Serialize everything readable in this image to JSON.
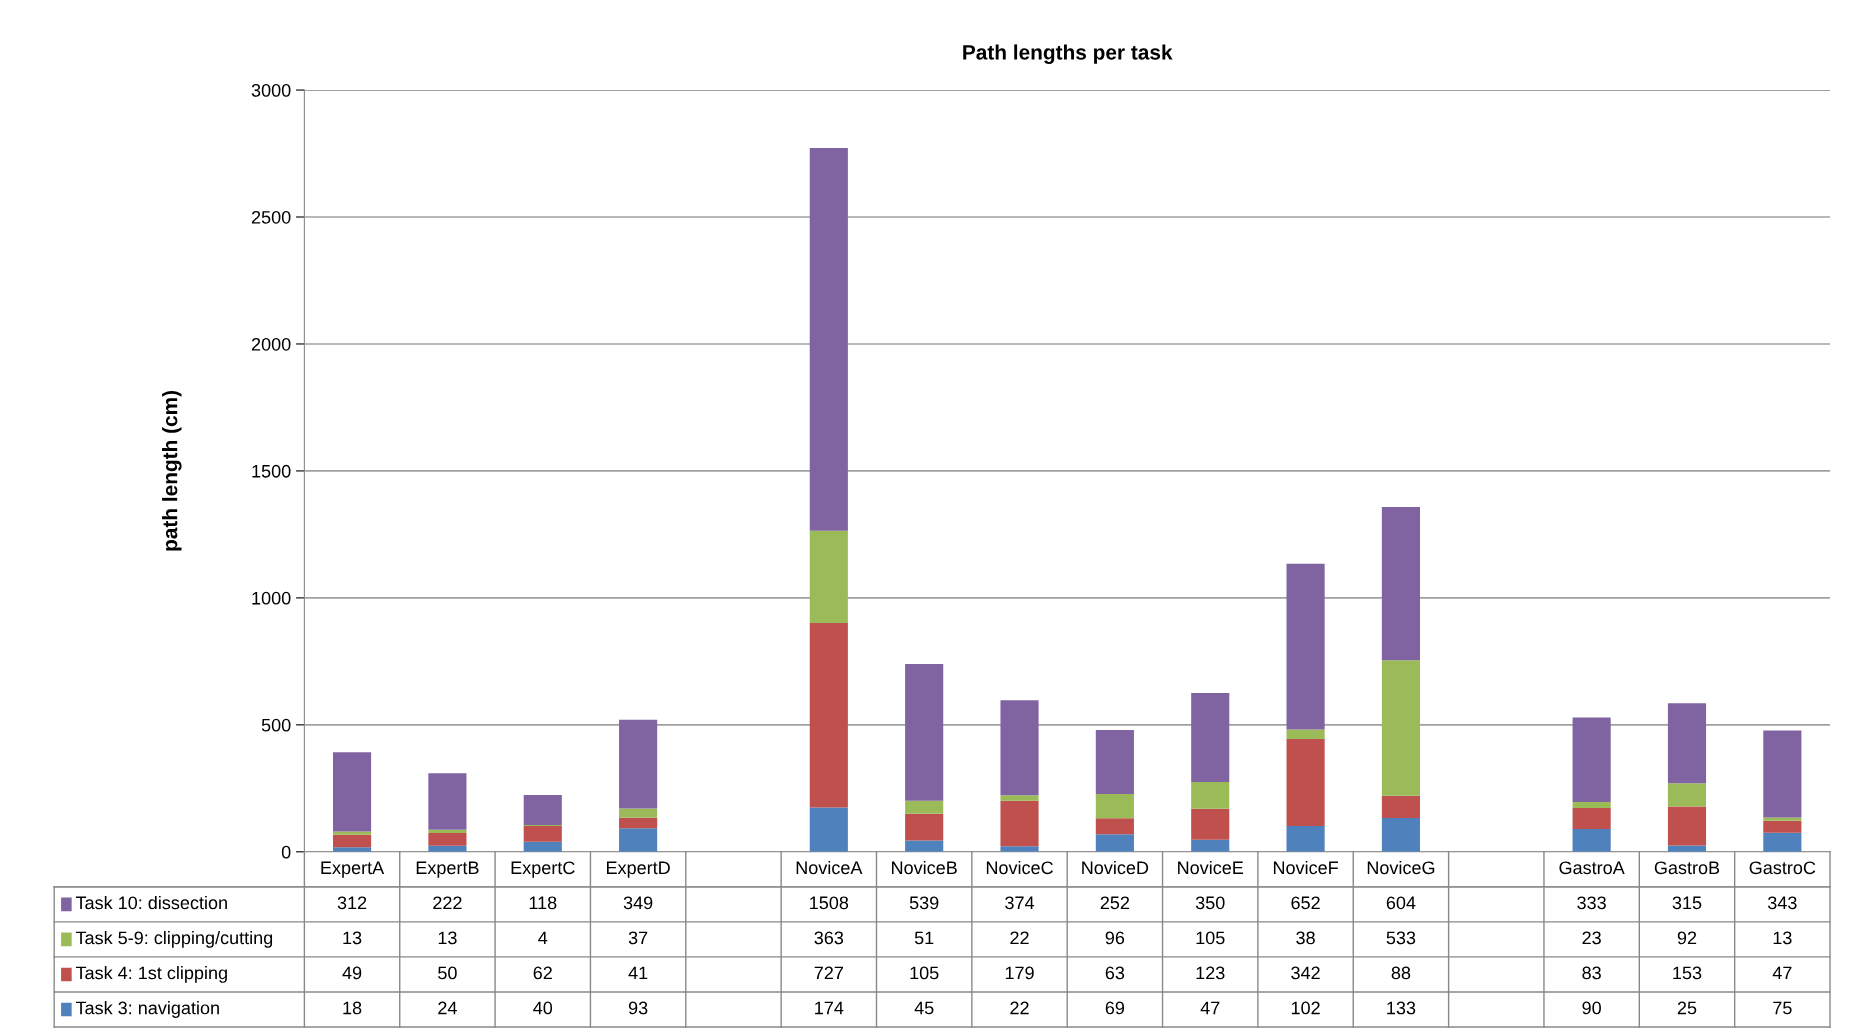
{
  "chart_data": {
    "type": "bar",
    "title": "Path lengths per task",
    "ylabel": "path length (cm)",
    "stacked": true,
    "categories": [
      "ExpertA",
      "ExpertB",
      "ExpertC",
      "ExpertD",
      null,
      "NoviceA",
      "NoviceB",
      "NoviceC",
      "NoviceD",
      "NoviceE",
      "NoviceF",
      "NoviceG",
      null,
      "GastroA",
      "GastroB",
      "GastroC"
    ],
    "series": [
      {
        "name": "Task 3: navigation",
        "color": "#4f81bd",
        "values": [
          18,
          24,
          40,
          93,
          null,
          174,
          45,
          22,
          69,
          47,
          102,
          133,
          null,
          90,
          25,
          75
        ]
      },
      {
        "name": "Task 4: 1st clipping",
        "color": "#c0504d",
        "values": [
          49,
          50,
          62,
          41,
          null,
          727,
          105,
          179,
          63,
          123,
          342,
          88,
          null,
          83,
          153,
          47
        ]
      },
      {
        "name": "Task 5-9: clipping/cutting",
        "color": "#9bbb59",
        "values": [
          13,
          13,
          4,
          37,
          null,
          363,
          51,
          22,
          96,
          105,
          38,
          533,
          null,
          23,
          92,
          13
        ]
      },
      {
        "name": "Task 10: dissection",
        "color": "#8064a2",
        "values": [
          312,
          222,
          118,
          349,
          null,
          1508,
          539,
          374,
          252,
          350,
          652,
          604,
          null,
          333,
          315,
          343
        ]
      }
    ],
    "ylim": [
      0,
      3000
    ],
    "yticks": [
      0,
      500,
      1000,
      1500,
      2000,
      2500,
      3000
    ],
    "grid": "y",
    "legend": "bottom",
    "data_labels": true
  }
}
